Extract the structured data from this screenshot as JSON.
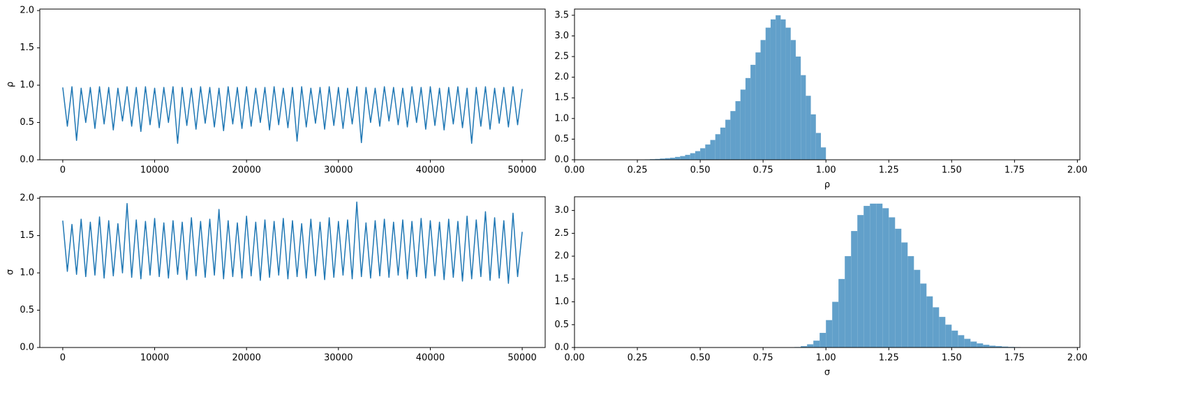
{
  "chart_data": [
    {
      "type": "line",
      "ylabel": "ρ",
      "color": "#1f77b4",
      "x": [
        0,
        500,
        1000,
        1500,
        2000,
        2500,
        3000,
        3500,
        4000,
        4500,
        5000,
        5500,
        6000,
        6500,
        7000,
        7500,
        8000,
        8500,
        9000,
        9500,
        10000,
        10500,
        11000,
        11500,
        12000,
        12500,
        13000,
        13500,
        14000,
        14500,
        15000,
        15500,
        16000,
        16500,
        17000,
        17500,
        18000,
        18500,
        19000,
        19500,
        20000,
        20500,
        21000,
        21500,
        22000,
        22500,
        23000,
        23500,
        24000,
        24500,
        25000,
        25500,
        26000,
        26500,
        27000,
        27500,
        28000,
        28500,
        29000,
        29500,
        30000,
        30500,
        31000,
        31500,
        32000,
        32500,
        33000,
        33500,
        34000,
        34500,
        35000,
        35500,
        36000,
        36500,
        37000,
        37500,
        38000,
        38500,
        39000,
        39500,
        40000,
        40500,
        41000,
        41500,
        42000,
        42500,
        43000,
        43500,
        44000,
        44500,
        45000,
        45500,
        46000,
        46500,
        47000,
        47500,
        48000,
        48500,
        49000,
        49500,
        50000
      ],
      "values": [
        0.97,
        0.45,
        0.98,
        0.26,
        0.96,
        0.5,
        0.97,
        0.42,
        0.98,
        0.48,
        0.97,
        0.4,
        0.96,
        0.52,
        0.98,
        0.45,
        0.97,
        0.38,
        0.98,
        0.47,
        0.96,
        0.43,
        0.97,
        0.5,
        0.98,
        0.22,
        0.97,
        0.46,
        0.96,
        0.41,
        0.98,
        0.49,
        0.97,
        0.44,
        0.96,
        0.39,
        0.98,
        0.48,
        0.97,
        0.42,
        0.98,
        0.45,
        0.96,
        0.5,
        0.97,
        0.4,
        0.98,
        0.47,
        0.96,
        0.43,
        0.97,
        0.25,
        0.98,
        0.44,
        0.96,
        0.49,
        0.97,
        0.41,
        0.98,
        0.46,
        0.97,
        0.42,
        0.96,
        0.48,
        0.98,
        0.23,
        0.97,
        0.5,
        0.96,
        0.45,
        0.98,
        0.52,
        0.97,
        0.47,
        0.96,
        0.44,
        0.98,
        0.5,
        0.97,
        0.41,
        0.98,
        0.46,
        0.96,
        0.4,
        0.97,
        0.48,
        0.98,
        0.43,
        0.96,
        0.22,
        0.97,
        0.45,
        0.98,
        0.41,
        0.96,
        0.49,
        0.97,
        0.44,
        0.98,
        0.47,
        0.95
      ],
      "xlim": [
        -2500,
        52500
      ],
      "xticks": [
        0,
        10000,
        20000,
        30000,
        40000,
        50000
      ],
      "ylim": [
        0,
        2.02
      ],
      "yticks": [
        {
          "value": 0,
          "label": "0.0"
        },
        {
          "value": 0.5,
          "label": "0.5"
        },
        {
          "value": 1,
          "label": "1.0"
        },
        {
          "value": 1.5,
          "label": "1.5"
        },
        {
          "value": 2,
          "label": "2.0"
        }
      ]
    },
    {
      "type": "histogram",
      "xlabel": "ρ",
      "color": "#62a0ca",
      "bins": [
        0.2,
        0.22,
        0.24,
        0.26,
        0.28,
        0.3,
        0.32,
        0.34,
        0.36,
        0.38,
        0.4,
        0.42,
        0.44,
        0.46,
        0.48,
        0.5,
        0.52,
        0.54,
        0.56,
        0.58,
        0.6,
        0.62,
        0.64,
        0.66,
        0.68,
        0.7,
        0.72,
        0.74,
        0.76,
        0.78,
        0.8,
        0.82,
        0.84,
        0.86,
        0.88,
        0.9,
        0.92,
        0.94,
        0.96,
        0.98,
        1.0
      ],
      "values": [
        0.002,
        0.003,
        0.005,
        0.008,
        0.01,
        0.015,
        0.02,
        0.03,
        0.04,
        0.05,
        0.07,
        0.09,
        0.12,
        0.16,
        0.21,
        0.28,
        0.37,
        0.48,
        0.62,
        0.78,
        0.97,
        1.18,
        1.42,
        1.7,
        1.98,
        2.3,
        2.6,
        2.9,
        3.2,
        3.4,
        3.5,
        3.4,
        3.2,
        2.9,
        2.5,
        2.05,
        1.55,
        1.1,
        0.65,
        0.3
      ],
      "xlim": [
        0,
        2.01
      ],
      "xticks": [
        {
          "value": 0,
          "label": "0.00"
        },
        {
          "value": 0.25,
          "label": "0.25"
        },
        {
          "value": 0.5,
          "label": "0.50"
        },
        {
          "value": 0.75,
          "label": "0.75"
        },
        {
          "value": 1,
          "label": "1.00"
        },
        {
          "value": 1.25,
          "label": "1.25"
        },
        {
          "value": 1.5,
          "label": "1.50"
        },
        {
          "value": 1.75,
          "label": "1.75"
        },
        {
          "value": 2,
          "label": "2.00"
        }
      ],
      "ylim": [
        0,
        3.65
      ],
      "yticks": [
        {
          "value": 0,
          "label": "0.0"
        },
        {
          "value": 0.5,
          "label": "0.5"
        },
        {
          "value": 1,
          "label": "1.0"
        },
        {
          "value": 1.5,
          "label": "1.5"
        },
        {
          "value": 2,
          "label": "2.0"
        },
        {
          "value": 2.5,
          "label": "2.5"
        },
        {
          "value": 3,
          "label": "3.0"
        },
        {
          "value": 3.5,
          "label": "3.5"
        }
      ]
    },
    {
      "type": "line",
      "ylabel": "σ",
      "color": "#1f77b4",
      "x": [
        0,
        500,
        1000,
        1500,
        2000,
        2500,
        3000,
        3500,
        4000,
        4500,
        5000,
        5500,
        6000,
        6500,
        7000,
        7500,
        8000,
        8500,
        9000,
        9500,
        10000,
        10500,
        11000,
        11500,
        12000,
        12500,
        13000,
        13500,
        14000,
        14500,
        15000,
        15500,
        16000,
        16500,
        17000,
        17500,
        18000,
        18500,
        19000,
        19500,
        20000,
        20500,
        21000,
        21500,
        22000,
        22500,
        23000,
        23500,
        24000,
        24500,
        25000,
        25500,
        26000,
        26500,
        27000,
        27500,
        28000,
        28500,
        29000,
        29500,
        30000,
        30500,
        31000,
        31500,
        32000,
        32500,
        33000,
        33500,
        34000,
        34500,
        35000,
        35500,
        36000,
        36500,
        37000,
        37500,
        38000,
        38500,
        39000,
        39500,
        40000,
        40500,
        41000,
        41500,
        42000,
        42500,
        43000,
        43500,
        44000,
        44500,
        45000,
        45500,
        46000,
        46500,
        47000,
        47500,
        48000,
        48500,
        49000,
        49500,
        50000
      ],
      "values": [
        1.7,
        1.02,
        1.65,
        0.98,
        1.72,
        0.95,
        1.68,
        0.97,
        1.75,
        0.93,
        1.7,
        0.96,
        1.66,
        1.0,
        1.93,
        0.94,
        1.71,
        0.92,
        1.69,
        0.97,
        1.73,
        0.95,
        1.67,
        0.93,
        1.7,
        0.98,
        1.68,
        0.91,
        1.74,
        0.96,
        1.69,
        0.94,
        1.72,
        0.97,
        1.85,
        0.92,
        1.7,
        0.95,
        1.67,
        0.93,
        1.76,
        0.96,
        1.68,
        0.9,
        1.71,
        0.94,
        1.69,
        0.97,
        1.73,
        0.92,
        1.7,
        0.95,
        1.66,
        0.93,
        1.72,
        0.96,
        1.68,
        0.91,
        1.74,
        0.94,
        1.69,
        0.97,
        1.71,
        0.92,
        1.95,
        0.95,
        1.67,
        0.93,
        1.7,
        0.96,
        1.72,
        0.94,
        1.68,
        0.97,
        1.71,
        0.92,
        1.69,
        0.95,
        1.73,
        0.93,
        1.7,
        0.96,
        1.68,
        0.91,
        1.72,
        0.94,
        1.69,
        0.89,
        1.76,
        0.92,
        1.71,
        0.95,
        1.82,
        0.9,
        1.74,
        0.93,
        1.7,
        0.86,
        1.8,
        0.95,
        1.55
      ],
      "xlim": [
        -2500,
        52500
      ],
      "xticks": [
        0,
        10000,
        20000,
        30000,
        40000,
        50000
      ],
      "ylim": [
        0,
        2.02
      ],
      "yticks": [
        {
          "value": 0,
          "label": "0.0"
        },
        {
          "value": 0.5,
          "label": "0.5"
        },
        {
          "value": 1,
          "label": "1.0"
        },
        {
          "value": 1.5,
          "label": "1.5"
        },
        {
          "value": 2,
          "label": "2.0"
        }
      ]
    },
    {
      "type": "histogram",
      "xlabel": "σ",
      "color": "#62a0ca",
      "bins": [
        0.8,
        0.825,
        0.85,
        0.875,
        0.9,
        0.925,
        0.95,
        0.975,
        1.0,
        1.025,
        1.05,
        1.075,
        1.1,
        1.125,
        1.15,
        1.175,
        1.2,
        1.225,
        1.25,
        1.275,
        1.3,
        1.325,
        1.35,
        1.375,
        1.4,
        1.425,
        1.45,
        1.475,
        1.5,
        1.525,
        1.55,
        1.575,
        1.6,
        1.625,
        1.65,
        1.675,
        1.7,
        1.725,
        1.75,
        1.775,
        1.8,
        1.825,
        1.85,
        1.875,
        1.9
      ],
      "values": [
        0.002,
        0.003,
        0.005,
        0.01,
        0.03,
        0.07,
        0.15,
        0.32,
        0.6,
        1.0,
        1.5,
        2.0,
        2.55,
        2.9,
        3.1,
        3.15,
        3.15,
        3.05,
        2.85,
        2.6,
        2.3,
        2.0,
        1.7,
        1.4,
        1.12,
        0.88,
        0.67,
        0.5,
        0.37,
        0.27,
        0.19,
        0.13,
        0.09,
        0.06,
        0.04,
        0.03,
        0.02,
        0.013,
        0.009,
        0.006,
        0.004,
        0.003,
        0.002,
        0.001
      ],
      "xlim": [
        0,
        2.01
      ],
      "xticks": [
        {
          "value": 0,
          "label": "0.00"
        },
        {
          "value": 0.25,
          "label": "0.25"
        },
        {
          "value": 0.5,
          "label": "0.50"
        },
        {
          "value": 0.75,
          "label": "0.75"
        },
        {
          "value": 1,
          "label": "1.00"
        },
        {
          "value": 1.25,
          "label": "1.25"
        },
        {
          "value": 1.5,
          "label": "1.50"
        },
        {
          "value": 1.75,
          "label": "1.75"
        },
        {
          "value": 2,
          "label": "2.00"
        }
      ],
      "ylim": [
        0,
        3.3
      ],
      "yticks": [
        {
          "value": 0,
          "label": "0.0"
        },
        {
          "value": 0.5,
          "label": "0.5"
        },
        {
          "value": 1,
          "label": "1.0"
        },
        {
          "value": 1.5,
          "label": "1.5"
        },
        {
          "value": 2,
          "label": "2.0"
        },
        {
          "value": 2.5,
          "label": "2.5"
        },
        {
          "value": 3,
          "label": "3.0"
        }
      ]
    }
  ]
}
